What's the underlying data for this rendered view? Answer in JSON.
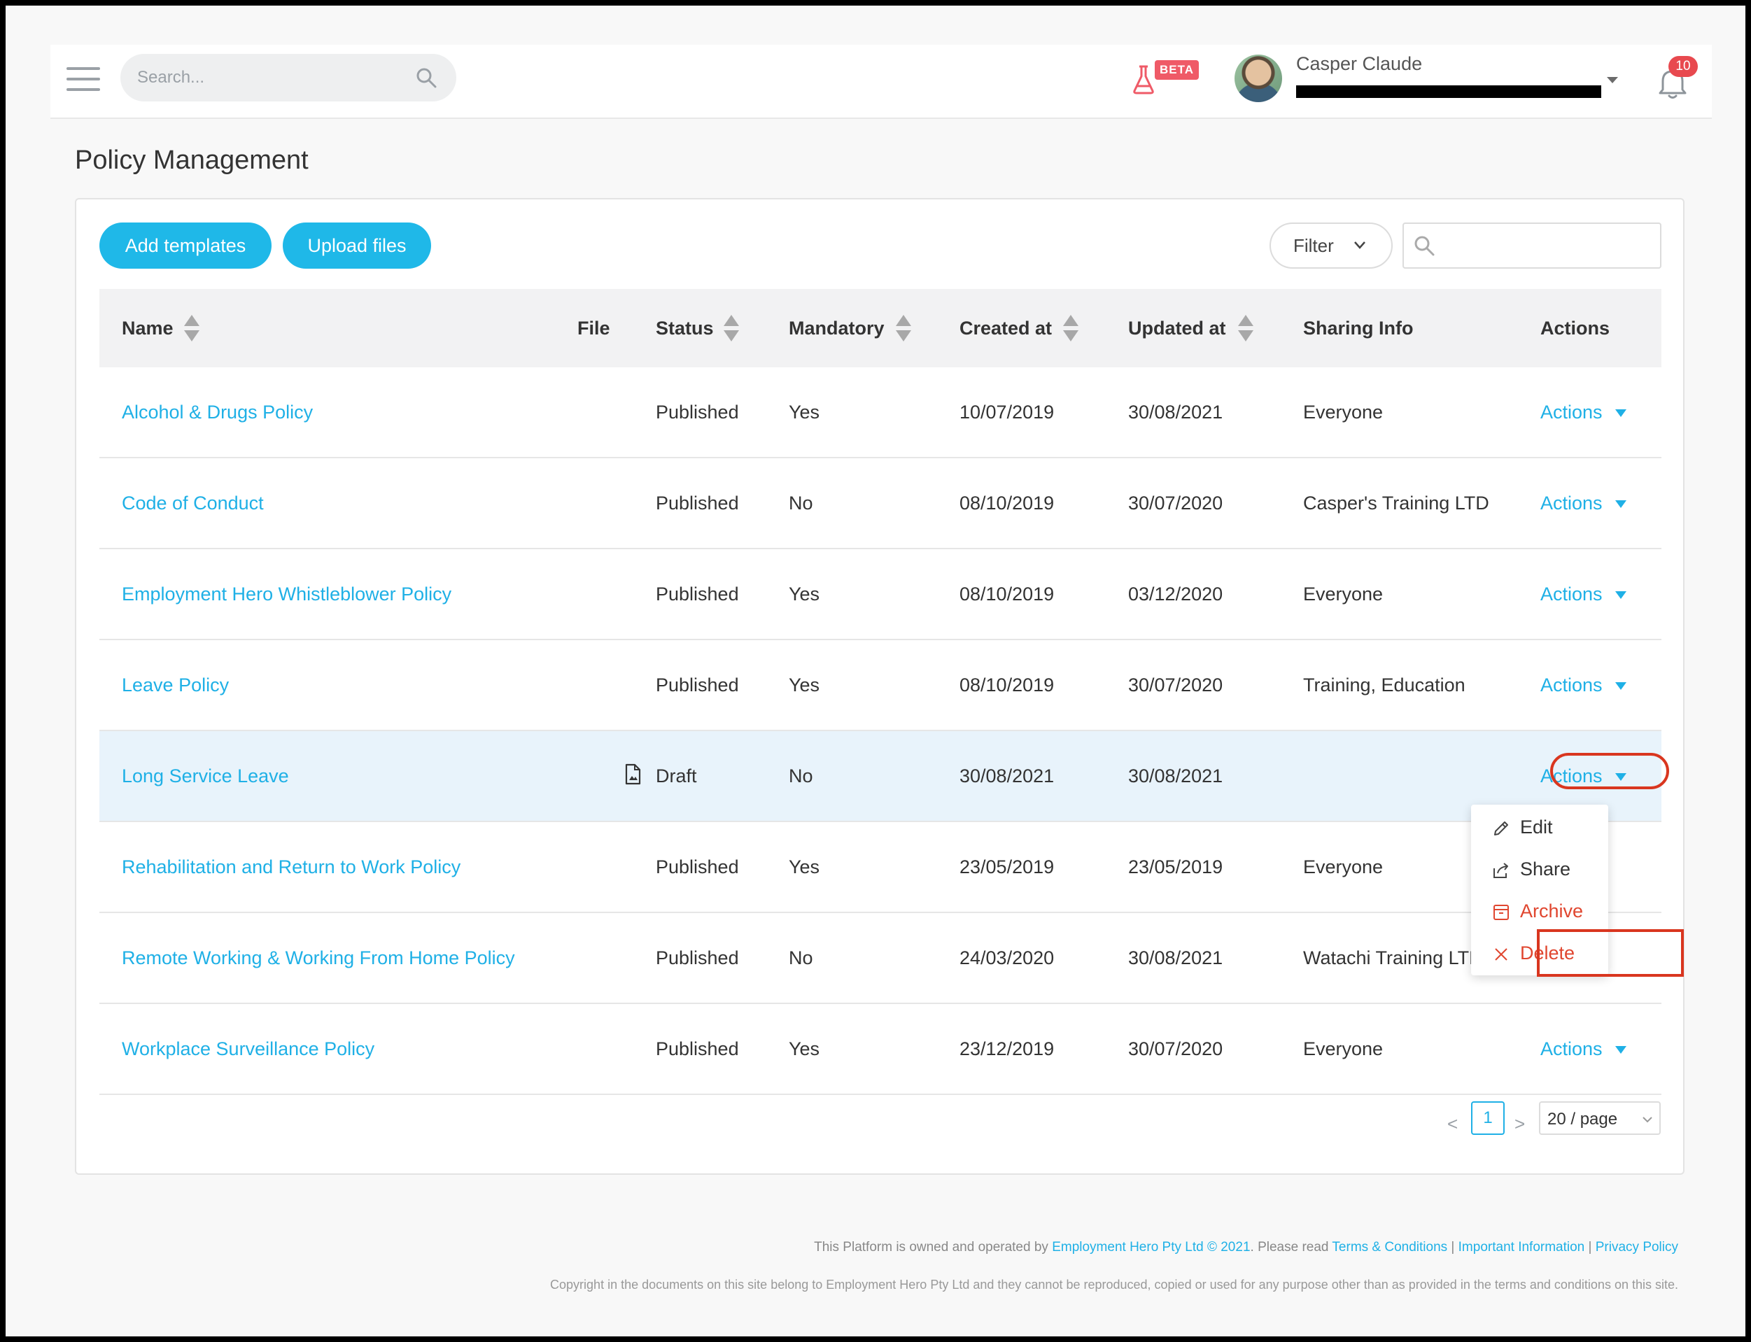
{
  "header": {
    "search_placeholder": "Search...",
    "beta_label": "BETA",
    "user_name": "Casper Claude",
    "notification_count": "10"
  },
  "page": {
    "title": "Policy Management"
  },
  "toolbar": {
    "add_templates": "Add templates",
    "upload_files": "Upload files",
    "filter": "Filter"
  },
  "table": {
    "columns": {
      "name": "Name",
      "file": "File",
      "status": "Status",
      "mandatory": "Mandatory",
      "created_at": "Created at",
      "updated_at": "Updated at",
      "sharing_info": "Sharing Info",
      "actions": "Actions"
    },
    "rows": [
      {
        "name": "Alcohol & Drugs Policy",
        "status": "Published",
        "mandatory": "Yes",
        "created": "10/07/2019",
        "updated": "30/08/2021",
        "sharing": "Everyone",
        "action": "Actions"
      },
      {
        "name": "Code of Conduct",
        "status": "Published",
        "mandatory": "No",
        "created": "08/10/2019",
        "updated": "30/07/2020",
        "sharing": "Casper's Training LTD",
        "action": "Actions"
      },
      {
        "name": "Employment Hero Whistleblower Policy",
        "status": "Published",
        "mandatory": "Yes",
        "created": "08/10/2019",
        "updated": "03/12/2020",
        "sharing": "Everyone",
        "action": "Actions"
      },
      {
        "name": "Leave Policy",
        "status": "Published",
        "mandatory": "Yes",
        "created": "08/10/2019",
        "updated": "30/07/2020",
        "sharing": "Training, Education",
        "action": "Actions"
      },
      {
        "name": "Long Service Leave",
        "status": "Draft",
        "mandatory": "No",
        "created": "30/08/2021",
        "updated": "30/08/2021",
        "sharing": "",
        "action": "Actions"
      },
      {
        "name": "Rehabilitation and Return to Work Policy",
        "status": "Published",
        "mandatory": "Yes",
        "created": "23/05/2019",
        "updated": "23/05/2019",
        "sharing": "Everyone",
        "action": ""
      },
      {
        "name": "Remote Working & Working From Home Policy",
        "status": "Published",
        "mandatory": "No",
        "created": "24/03/2020",
        "updated": "30/08/2021",
        "sharing": "Watachi Training LTD",
        "action": ""
      },
      {
        "name": "Workplace Surveillance Policy",
        "status": "Published",
        "mandatory": "Yes",
        "created": "23/12/2019",
        "updated": "30/07/2020",
        "sharing": "Everyone",
        "action": "Actions"
      }
    ]
  },
  "actions_menu": {
    "edit": "Edit",
    "share": "Share",
    "archive": "Archive",
    "delete": "Delete"
  },
  "pagination": {
    "prev": "<",
    "current": "1",
    "next": ">",
    "page_size": "20 / page"
  },
  "footer": {
    "line1_prefix": "This Platform is owned and operated by ",
    "company_link": "Employment Hero Pty Ltd © 2021",
    "line1_mid": ". Please read ",
    "terms_link": "Terms & Conditions",
    "sep1": " | ",
    "important_link": "Important Information",
    "sep2": " | ",
    "privacy_link": "Privacy Policy",
    "copyright": "Copyright in the documents on this site belong to Employment Hero Pty Ltd and they cannot be reproduced, copied or used for any purpose other than as provided in the terms and conditions on this site."
  },
  "colors": {
    "accent": "#1fb8e8",
    "link": "#1fb0e6",
    "danger": "#e0462f",
    "highlight_row": "#e8f3fb"
  }
}
